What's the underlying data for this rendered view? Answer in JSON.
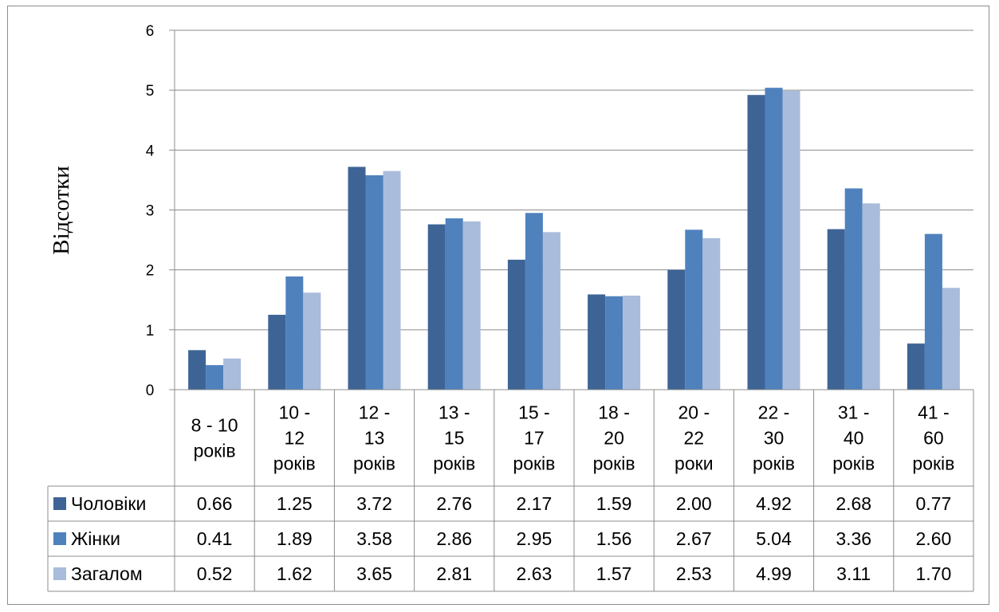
{
  "chart_data": {
    "type": "bar",
    "title": "",
    "xlabel": "",
    "ylabel": "Відсотки",
    "ylim": [
      0,
      6
    ],
    "yticks": [
      "0",
      "1",
      "2",
      "3",
      "4",
      "5",
      "6"
    ],
    "grid": true,
    "legend": "data-table-left",
    "categories": [
      [
        "8 - 10",
        "років"
      ],
      [
        "10 -",
        "12",
        "років"
      ],
      [
        "12 -",
        "13",
        "років"
      ],
      [
        "13 -",
        "15",
        "років"
      ],
      [
        "15 -",
        "17",
        "років"
      ],
      [
        "18 -",
        "20",
        "років"
      ],
      [
        "20 -",
        "22",
        "роки"
      ],
      [
        "22 -",
        "30",
        "років"
      ],
      [
        "31 -",
        "40",
        "років"
      ],
      [
        "41 -",
        "60",
        "років"
      ]
    ],
    "series": [
      {
        "name": "Чоловіки",
        "color": "#3e6496",
        "values": [
          0.66,
          1.25,
          3.72,
          2.76,
          2.17,
          1.59,
          2.0,
          4.92,
          2.68,
          0.77
        ],
        "labels": [
          "0.66",
          "1.25",
          "3.72",
          "2.76",
          "2.17",
          "1.59",
          "2.00",
          "4.92",
          "2.68",
          "0.77"
        ]
      },
      {
        "name": "Жінки",
        "color": "#4f81bd",
        "values": [
          0.41,
          1.89,
          3.58,
          2.86,
          2.95,
          1.56,
          2.67,
          5.04,
          3.36,
          2.6
        ],
        "labels": [
          "0.41",
          "1.89",
          "3.58",
          "2.86",
          "2.95",
          "1.56",
          "2.67",
          "5.04",
          "3.36",
          "2.60"
        ]
      },
      {
        "name": "Загалом",
        "color": "#a9bcdb",
        "values": [
          0.52,
          1.62,
          3.65,
          2.81,
          2.63,
          1.57,
          2.53,
          4.99,
          3.11,
          1.7
        ],
        "labels": [
          "0.52",
          "1.62",
          "3.65",
          "2.81",
          "2.63",
          "1.57",
          "2.53",
          "4.99",
          "3.11",
          "1.70"
        ]
      }
    ]
  }
}
